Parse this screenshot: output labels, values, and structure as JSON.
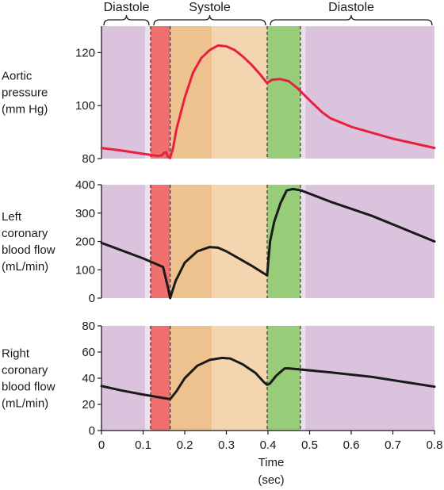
{
  "chart_data": {
    "type": "line",
    "x": {
      "min": 0,
      "max": 0.8,
      "ticks": [
        "0",
        "0.1",
        "0.2",
        "0.3",
        "0.4",
        "0.5",
        "0.6",
        "0.7",
        "0.8"
      ]
    },
    "xlabel_line1": "Time",
    "xlabel_line2": "(sec)",
    "phase_labels": [
      {
        "text": "Diastole",
        "from": 0.0,
        "to": 0.12
      },
      {
        "text": "Systole",
        "from": 0.12,
        "to": 0.4
      },
      {
        "text": "Diastole",
        "from": 0.4,
        "to": 0.8
      }
    ],
    "bands": [
      {
        "from": 0.0,
        "to": 0.105,
        "color": "#dcc3dd"
      },
      {
        "from": 0.105,
        "to": 0.118,
        "color": "#ebe0ec"
      },
      {
        "from": 0.118,
        "to": 0.165,
        "color": "#f07070"
      },
      {
        "from": 0.165,
        "to": 0.265,
        "color": "#eec28f"
      },
      {
        "from": 0.265,
        "to": 0.398,
        "color": "#f3d5af"
      },
      {
        "from": 0.398,
        "to": 0.478,
        "color": "#97cc79"
      },
      {
        "from": 0.478,
        "to": 0.49,
        "color": "#ebe0ec"
      },
      {
        "from": 0.49,
        "to": 0.8,
        "color": "#dcc3dd"
      }
    ],
    "markers": [
      0.118,
      0.165,
      0.398,
      0.478
    ],
    "panels": [
      {
        "label": [
          "Aortic",
          "pressure",
          "(mm Hg)"
        ],
        "ylim": [
          80,
          130
        ],
        "yticks": [
          80,
          100,
          120
        ],
        "color": "#e8203f",
        "points": [
          [
            0,
            84
          ],
          [
            0.05,
            83
          ],
          [
            0.1,
            81.8
          ],
          [
            0.135,
            81
          ],
          [
            0.145,
            81.2
          ],
          [
            0.15,
            82.2
          ],
          [
            0.155,
            82.4
          ],
          [
            0.16,
            80.7
          ],
          [
            0.165,
            80.2
          ],
          [
            0.172,
            84
          ],
          [
            0.18,
            91
          ],
          [
            0.2,
            103
          ],
          [
            0.22,
            112.5
          ],
          [
            0.24,
            118
          ],
          [
            0.26,
            121
          ],
          [
            0.28,
            122.7
          ],
          [
            0.3,
            122.4
          ],
          [
            0.32,
            121
          ],
          [
            0.34,
            118.5
          ],
          [
            0.36,
            115.5
          ],
          [
            0.38,
            112
          ],
          [
            0.398,
            108.5
          ],
          [
            0.41,
            109.8
          ],
          [
            0.43,
            110
          ],
          [
            0.45,
            109.2
          ],
          [
            0.47,
            106.7
          ],
          [
            0.5,
            102
          ],
          [
            0.53,
            97.5
          ],
          [
            0.55,
            95.2
          ],
          [
            0.6,
            92
          ],
          [
            0.7,
            87.5
          ],
          [
            0.8,
            84
          ]
        ]
      },
      {
        "label": [
          "Left",
          "coronary",
          "blood flow",
          "(mL/min)"
        ],
        "ylim": [
          0,
          400
        ],
        "yticks": [
          0,
          100,
          200,
          300,
          400
        ],
        "color": "#1a1a1a",
        "points": [
          [
            0,
            195
          ],
          [
            0.1,
            140
          ],
          [
            0.148,
            110
          ],
          [
            0.16,
            35
          ],
          [
            0.165,
            0
          ],
          [
            0.178,
            60
          ],
          [
            0.2,
            125
          ],
          [
            0.23,
            165
          ],
          [
            0.26,
            180
          ],
          [
            0.28,
            178
          ],
          [
            0.3,
            165
          ],
          [
            0.33,
            140
          ],
          [
            0.36,
            115
          ],
          [
            0.398,
            80
          ],
          [
            0.405,
            200
          ],
          [
            0.415,
            270
          ],
          [
            0.43,
            335
          ],
          [
            0.445,
            380
          ],
          [
            0.46,
            385
          ],
          [
            0.48,
            380
          ],
          [
            0.55,
            340
          ],
          [
            0.65,
            290
          ],
          [
            0.8,
            200
          ]
        ]
      },
      {
        "label": [
          "Right",
          "coronary",
          "blood flow",
          "(mL/min)"
        ],
        "ylim": [
          0,
          80
        ],
        "yticks": [
          0,
          20,
          40,
          60,
          80
        ],
        "color": "#1a1a1a",
        "points": [
          [
            0,
            34
          ],
          [
            0.05,
            30.5
          ],
          [
            0.1,
            27.5
          ],
          [
            0.15,
            24.8
          ],
          [
            0.165,
            24
          ],
          [
            0.18,
            30
          ],
          [
            0.2,
            40
          ],
          [
            0.23,
            49.5
          ],
          [
            0.26,
            54
          ],
          [
            0.29,
            55.5
          ],
          [
            0.31,
            55
          ],
          [
            0.34,
            50.5
          ],
          [
            0.37,
            44
          ],
          [
            0.39,
            37
          ],
          [
            0.398,
            35
          ],
          [
            0.405,
            36
          ],
          [
            0.42,
            42
          ],
          [
            0.44,
            47.5
          ],
          [
            0.45,
            47.5
          ],
          [
            0.55,
            44.5
          ],
          [
            0.65,
            41
          ],
          [
            0.8,
            33.5
          ]
        ]
      }
    ]
  }
}
